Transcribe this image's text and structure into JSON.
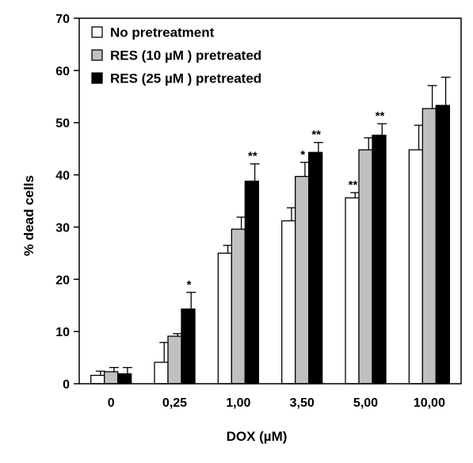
{
  "chart_data": {
    "type": "bar",
    "title": "",
    "xlabel": "DOX (µM)",
    "ylabel": "% dead cells",
    "ylim": [
      0,
      70
    ],
    "yticks": [
      0,
      10,
      20,
      30,
      40,
      50,
      60,
      70
    ],
    "grid": false,
    "legend_position": "top-left",
    "categories": [
      "0",
      "0,25",
      "1,00",
      "3,50",
      "5,00",
      "10,00"
    ],
    "series": [
      {
        "name": "No pretreatment",
        "color": "#ffffff",
        "values": [
          1.6,
          4.1,
          25.0,
          31.2,
          35.6,
          44.8
        ],
        "errors": [
          0.8,
          3.8,
          1.5,
          2.5,
          1.0,
          4.7
        ],
        "significance": [
          "",
          "",
          "",
          "",
          "**",
          ""
        ]
      },
      {
        "name": "RES (10 µM ) pretreated",
        "color": "#c0c0c0",
        "values": [
          2.3,
          9.1,
          29.6,
          39.7,
          44.8,
          52.7
        ],
        "errors": [
          0.8,
          0.5,
          2.3,
          2.7,
          2.3,
          4.4
        ],
        "significance": [
          "",
          "",
          "",
          "*",
          "",
          ""
        ]
      },
      {
        "name": "RES (25 µM ) pretreated",
        "color": "#000000",
        "values": [
          1.9,
          14.3,
          38.8,
          44.3,
          47.6,
          53.3
        ],
        "errors": [
          1.2,
          3.2,
          3.3,
          1.9,
          2.2,
          5.4
        ],
        "significance": [
          "",
          "*",
          "**",
          "**",
          "**",
          ""
        ]
      }
    ]
  }
}
